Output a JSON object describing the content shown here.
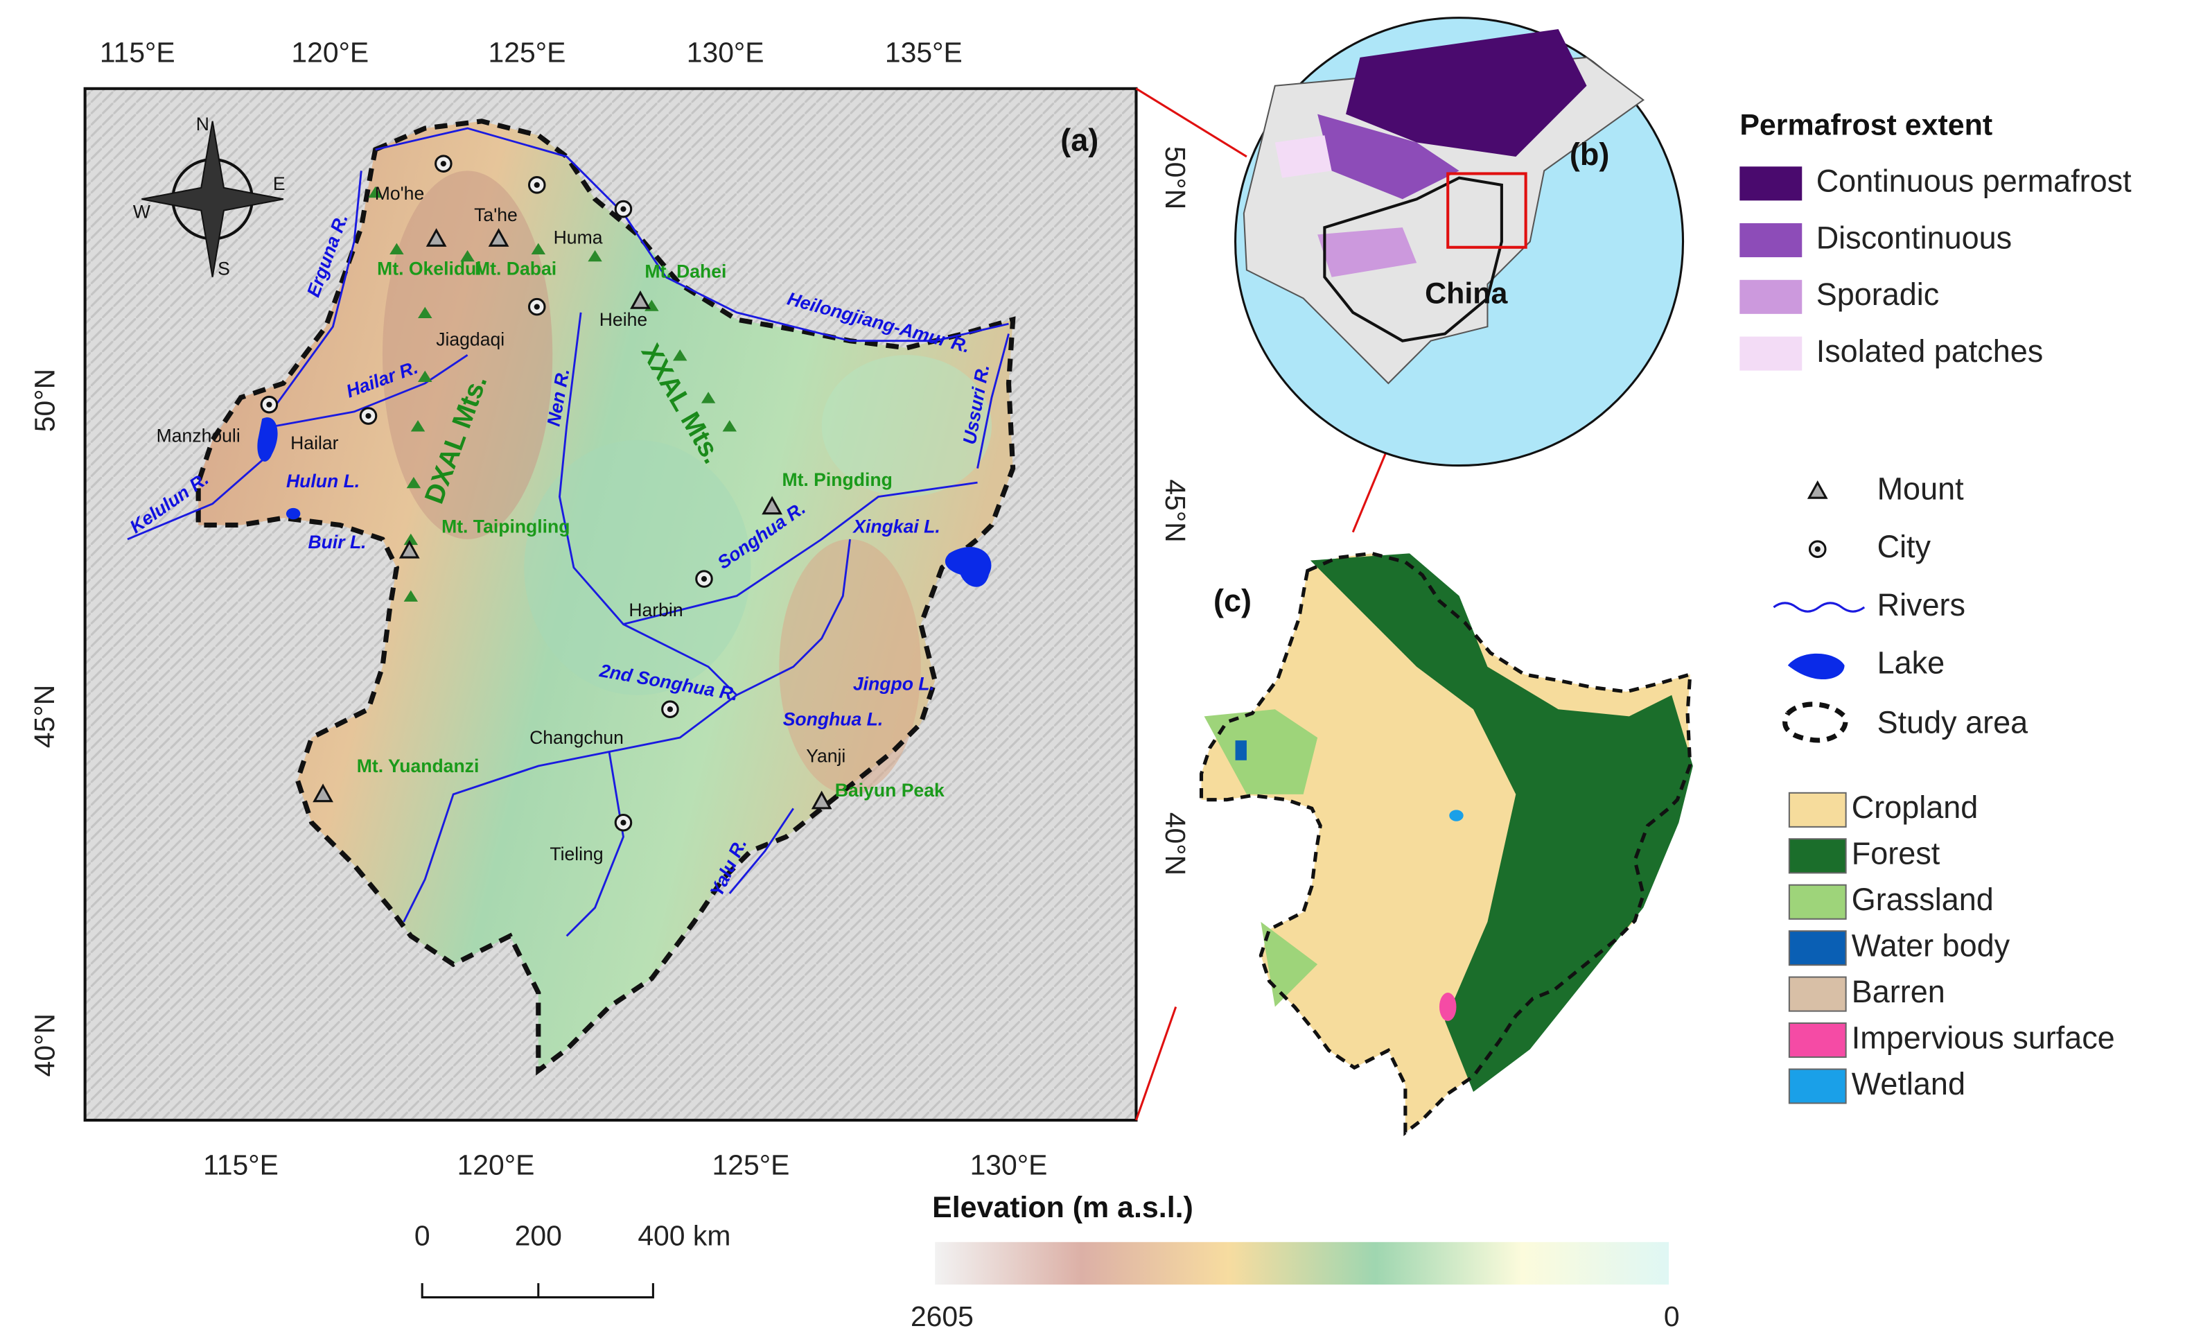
{
  "panel_a": {
    "label": "(a)",
    "longitude_top": [
      "115°E",
      "120°E",
      "125°E",
      "130°E",
      "135°E"
    ],
    "longitude_bottom": [
      "115°E",
      "120°E",
      "125°E",
      "130°E"
    ],
    "latitude_left": [
      "50°N",
      "45°N",
      "40°N"
    ],
    "latitude_right": [
      "50°N",
      "45°N",
      "40°N"
    ],
    "compass": [
      "N",
      "E",
      "S",
      "W"
    ],
    "cities": [
      "Mo'he",
      "Ta'he",
      "Huma",
      "Jiagdaqi",
      "Heihe",
      "Manzhouli",
      "Hailar",
      "Harbin",
      "Changchun",
      "Tieling",
      "Yanji"
    ],
    "mountains": [
      "Mt. Okelidui",
      "Mt. Dabai",
      "Mt. Dahei",
      "Mt. Pingding",
      "Mt. Taipingling",
      "Mt. Yuandanzi",
      "Baiyun Peak"
    ],
    "ranges": [
      "DXAL Mts.",
      "XXAL Mts."
    ],
    "water_bodies": [
      "Erguna R.",
      "Hailar R.",
      "Nen R.",
      "Heilongjiang-Amur R.",
      "Ussuri R.",
      "Kelulun R.",
      "Songhua R.",
      "Xingkai L.",
      "2nd Songhua R.",
      "Songhua L.",
      "Jingpo L.",
      "Yalu R.",
      "Hulun L.",
      "Buir L."
    ]
  },
  "scale_bar": [
    "0",
    "200",
    "400 km"
  ],
  "elevation_legend": {
    "title": "Elevation (m a.s.l.)",
    "high": "2605",
    "low": "0",
    "colors": [
      "#f2f2f2",
      "#dcb0a6",
      "#f7dca0",
      "#9fd6b0",
      "#fcfbdc",
      "#dff7f4"
    ]
  },
  "panel_b": {
    "label": "(b)",
    "country": "China"
  },
  "permafrost_legend": {
    "title": "Permafrost extent",
    "items": [
      {
        "label": "Continuous permafrost",
        "color": "#4a0a6e"
      },
      {
        "label": "Discontinuous",
        "color": "#8d4cb8"
      },
      {
        "label": "Sporadic",
        "color": "#cc99dd"
      },
      {
        "label": "Isolated patches",
        "color": "#f3dcf6"
      }
    ]
  },
  "symbol_legend": [
    "Mount",
    "City",
    "Rivers",
    "Lake",
    "Study area"
  ],
  "panel_c": {
    "label": "(c)"
  },
  "landcover_legend": [
    {
      "label": "Cropland",
      "color": "#f6dc9c"
    },
    {
      "label": "Forest",
      "color": "#1b6e2b"
    },
    {
      "label": "Grassland",
      "color": "#9ed47a"
    },
    {
      "label": "Water body",
      "color": "#0a5fb4"
    },
    {
      "label": "Barren",
      "color": "#d8bfa6"
    },
    {
      "label": "Impervious surface",
      "color": "#f54ba5"
    },
    {
      "label": "Wetland",
      "color": "#1aa0e8"
    }
  ]
}
